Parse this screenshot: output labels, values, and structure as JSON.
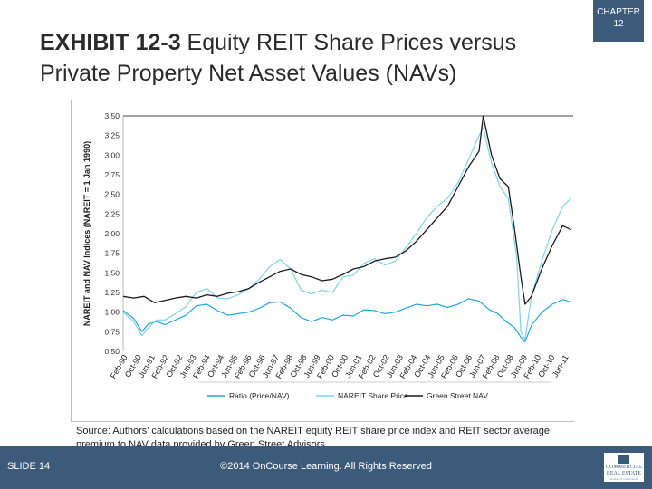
{
  "chapter": {
    "label": "CHAPTER",
    "number": "12"
  },
  "title": {
    "bold": "EXHIBIT 12-3",
    "rest": " Equity REIT Share Prices versus Private Property Net Asset Values (NAVs)"
  },
  "source": "Source: Authors’ calculations based on the NAREIT equity REIT share price index and REIT sector average premium to NAV data provided by Green Street Advisors.",
  "footer": {
    "slide": "SLIDE 14",
    "copyright": "©2014 OnCourse Learning. All Rights Reserved"
  },
  "logo": {
    "line1": "COMMERCIAL",
    "line2": "REAL ESTATE",
    "line3": "analysis & investments"
  },
  "colors": {
    "ratio": "#22a7d8",
    "nareit": "#7fd3ee",
    "nav": "#1a1a1a",
    "accent": "#3c5a7a"
  },
  "chart_data": {
    "type": "line",
    "title": "",
    "ylabel": "NAREIT and NAV Indices (NAREIT = 1 Jan 1990)",
    "xlabel": "",
    "ylim": [
      0.5,
      3.5
    ],
    "yticks": [
      "3.50",
      "3.25",
      "3.00",
      "2.75",
      "2.50",
      "2.25",
      "2.00",
      "1.75",
      "1.50",
      "1.25",
      "1.00",
      "0.75",
      "0.50"
    ],
    "x_start": 1990.0,
    "x_end": 2011.5,
    "xticks": [
      "Feb-90",
      "Oct-90",
      "Jun-91",
      "Feb-92",
      "Oct-92",
      "Jun-93",
      "Feb-94",
      "Oct-94",
      "Jun-95",
      "Feb-96",
      "Oct-96",
      "Jun-97",
      "Feb-98",
      "Oct-98",
      "Jun-99",
      "Feb-00",
      "Oct-00",
      "Jun-01",
      "Feb-02",
      "Oct-02",
      "Jun-03",
      "Feb-04",
      "Oct-04",
      "Jun-05",
      "Feb-06",
      "Oct-06",
      "Jun-07",
      "Feb-08",
      "Oct-08",
      "Jun-09",
      "Feb-10",
      "Oct-10",
      "Jun-11"
    ],
    "legend_position": "bottom",
    "series": [
      {
        "name": "Ratio (Price/NAV)",
        "key": "ratio",
        "x": [
          1990,
          1990.5,
          1990.9,
          1991.2,
          1991.6,
          1992,
          1992.5,
          1993,
          1993.5,
          1994,
          1994.5,
          1995,
          1995.5,
          1996,
          1996.5,
          1997,
          1997.5,
          1998,
          1998.5,
          1999,
          1999.5,
          2000,
          2000.5,
          2001,
          2001.5,
          2002,
          2002.5,
          2003,
          2003.5,
          2004,
          2004.5,
          2005,
          2005.5,
          2006,
          2006.5,
          2007,
          2007.5,
          2007.9,
          2008.3,
          2008.7,
          2009.0,
          2009.2,
          2009.5,
          2010,
          2010.5,
          2011,
          2011.4
        ],
        "values": [
          1.02,
          0.92,
          0.75,
          0.85,
          0.88,
          0.84,
          0.9,
          0.96,
          1.08,
          1.1,
          1.02,
          0.96,
          0.98,
          1.0,
          1.05,
          1.12,
          1.13,
          1.05,
          0.93,
          0.88,
          0.93,
          0.9,
          0.96,
          0.95,
          1.03,
          1.02,
          0.98,
          1.0,
          1.05,
          1.1,
          1.08,
          1.1,
          1.06,
          1.1,
          1.17,
          1.14,
          1.03,
          0.98,
          0.88,
          0.8,
          0.68,
          0.62,
          0.83,
          1.0,
          1.1,
          1.16,
          1.13
        ]
      },
      {
        "name": "NAREIT Share Price",
        "key": "nareit",
        "x": [
          1990,
          1990.5,
          1990.9,
          1991.2,
          1991.6,
          1992,
          1992.5,
          1993,
          1993.5,
          1994,
          1994.5,
          1995,
          1995.5,
          1996,
          1996.5,
          1997,
          1997.5,
          1998,
          1998.5,
          1999,
          1999.5,
          2000,
          2000.5,
          2001,
          2001.5,
          2002,
          2002.5,
          2003,
          2003.5,
          2004,
          2004.5,
          2005,
          2005.5,
          2006,
          2006.5,
          2007,
          2007.2,
          2007.6,
          2008.0,
          2008.4,
          2008.8,
          2009.0,
          2009.2,
          2009.5,
          2010,
          2010.5,
          2011,
          2011.4
        ],
        "values": [
          1.0,
          0.88,
          0.7,
          0.8,
          0.9,
          0.9,
          0.98,
          1.07,
          1.25,
          1.3,
          1.18,
          1.17,
          1.22,
          1.3,
          1.42,
          1.58,
          1.67,
          1.55,
          1.28,
          1.23,
          1.28,
          1.25,
          1.45,
          1.47,
          1.62,
          1.68,
          1.6,
          1.65,
          1.82,
          2.0,
          2.2,
          2.35,
          2.45,
          2.65,
          2.95,
          3.25,
          3.35,
          2.9,
          2.6,
          2.45,
          1.7,
          0.75,
          0.65,
          1.2,
          1.65,
          2.05,
          2.35,
          2.45
        ]
      },
      {
        "name": "Green Street NAV",
        "key": "nav",
        "x": [
          1990,
          1990.5,
          1991,
          1991.5,
          1992,
          1992.5,
          1993,
          1993.5,
          1994,
          1994.5,
          1995,
          1995.5,
          1996,
          1996.5,
          1997,
          1997.5,
          1998,
          1998.5,
          1999,
          1999.5,
          2000,
          2000.5,
          2001,
          2001.5,
          2002,
          2002.5,
          2003,
          2003.5,
          2004,
          2004.5,
          2005,
          2005.5,
          2006,
          2006.5,
          2007,
          2007.2,
          2007.6,
          2008.0,
          2008.4,
          2008.7,
          2009.0,
          2009.2,
          2009.5,
          2010,
          2010.5,
          2011,
          2011.4
        ],
        "values": [
          1.2,
          1.18,
          1.2,
          1.12,
          1.15,
          1.18,
          1.2,
          1.18,
          1.22,
          1.2,
          1.24,
          1.26,
          1.3,
          1.38,
          1.45,
          1.52,
          1.55,
          1.48,
          1.45,
          1.4,
          1.42,
          1.48,
          1.55,
          1.58,
          1.65,
          1.68,
          1.7,
          1.78,
          1.9,
          2.05,
          2.2,
          2.35,
          2.6,
          2.85,
          3.05,
          3.5,
          3.0,
          2.7,
          2.6,
          2.05,
          1.45,
          1.1,
          1.2,
          1.55,
          1.85,
          2.1,
          2.05
        ]
      }
    ]
  }
}
